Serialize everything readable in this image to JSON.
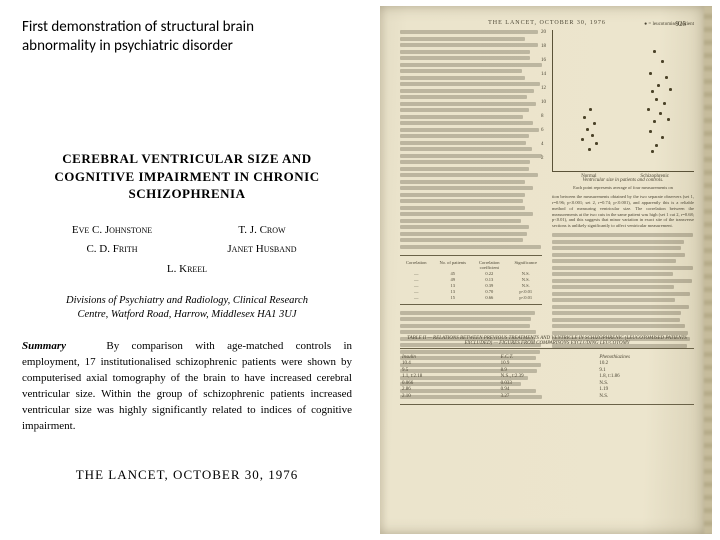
{
  "caption": "First demonstration of structural brain abnormality in psychiatric disorder",
  "paper": {
    "title_line1": "CEREBRAL VENTRICULAR SIZE AND",
    "title_line2": "COGNITIVE IMPAIRMENT IN CHRONIC",
    "title_line3": "SCHIZOPHRENIA",
    "authors": {
      "row1_left": "Eve C. Johnstone",
      "row1_right": "T. J. Crow",
      "row2_left": "C. D. Frith",
      "row2_right": "Janet Husband",
      "row3_center": "L. Kreel"
    },
    "affiliation_line1": "Divisions of Psychiatry and Radiology, Clinical Research",
    "affiliation_line2": "Centre, Watford Road, Harrow, Middlesex HA1 3UJ",
    "summary_label": "Summary",
    "summary_text": "By comparison with age-matched controls in employment, 17 institutionalised schizophrenic patients were shown by computerised axial tomography of the brain to have increased cerebral ventricular size. Within the group of schizophrenic patients increased ventricular size was highly significantly related to indices of cognitive impairment.",
    "journal_date": "THE LANCET, OCTOBER 30, 1976"
  },
  "scan": {
    "head": "THE LANCET, OCTOBER 30, 1976",
    "page_number": "925",
    "chart": {
      "corner_label": "● = leucotomised patient",
      "y_ticks": [
        "20",
        "18",
        "16",
        "14",
        "12",
        "10",
        "8",
        "6",
        "4",
        "2"
      ],
      "x_left": "Normal",
      "x_right": "Schizophrenic",
      "caption": "Ventricular size in patients and controls.",
      "subcaption": "Each point represents average of four measurements on",
      "normal_points": [
        {
          "x": 36,
          "y": 78
        },
        {
          "x": 30,
          "y": 86
        },
        {
          "x": 40,
          "y": 92
        },
        {
          "x": 33,
          "y": 98
        },
        {
          "x": 38,
          "y": 104
        },
        {
          "x": 28,
          "y": 108
        },
        {
          "x": 42,
          "y": 112
        },
        {
          "x": 35,
          "y": 118
        }
      ],
      "schizo_points": [
        {
          "x": 100,
          "y": 20
        },
        {
          "x": 108,
          "y": 30
        },
        {
          "x": 96,
          "y": 42
        },
        {
          "x": 112,
          "y": 46
        },
        {
          "x": 104,
          "y": 54
        },
        {
          "x": 98,
          "y": 60
        },
        {
          "x": 116,
          "y": 58
        },
        {
          "x": 102,
          "y": 68
        },
        {
          "x": 110,
          "y": 72
        },
        {
          "x": 94,
          "y": 78
        },
        {
          "x": 106,
          "y": 82
        },
        {
          "x": 100,
          "y": 90
        },
        {
          "x": 114,
          "y": 88
        },
        {
          "x": 96,
          "y": 100
        },
        {
          "x": 108,
          "y": 106
        },
        {
          "x": 102,
          "y": 114
        },
        {
          "x": 98,
          "y": 120
        }
      ]
    },
    "table1": {
      "cols": [
        "Correlation",
        "No. of patients",
        "Correlation coefficient",
        "Significance"
      ],
      "rows": [
        [
          "—",
          "45",
          "0.22",
          "N.S."
        ],
        [
          "—",
          "49",
          "0.13",
          "N.S."
        ],
        [
          "—",
          "13",
          "0.39",
          "N.S."
        ],
        [
          "—",
          "13",
          "0.70",
          "p<0.01"
        ],
        [
          "—",
          "15",
          "0.66",
          "p<0.01"
        ]
      ]
    },
    "right_text_tail_a": "tion between the measurements obtained by the two separate observers (set 1, r=0.96; p<0.001; set 2, r=0.74; p<0.001), and apparently this is a reliable method of measuring ventricular size. The correlation between the measurements at the two cuts in the same patient was high (set 1 cut 2, r=0.68; p<0.01), and this suggests that minor variation in exact site of the transverse sections is unlikely significantly to affect ventricular measurement.",
    "table2": {
      "title": "TABLE II — RELATIONS BETWEEN PREVIOUS TREATMENTS AND VENTRICLE IN SCHIZOPHRENIC (LEUCOTOMISED PATIENTS EXCLUDED) — FIGURES FROM COMPARISONS EXCLUDING LEUCOTOMY",
      "groups": [
        "Insulin",
        "E.C.T.",
        "Phenothiazines"
      ],
      "cells": [
        [
          "10.4",
          "9.5",
          "1.1, t:2.18",
          "0.066",
          "2.86",
          "2.10"
        ],
        [
          "10.9",
          "8.9",
          "N.S., t:2.39",
          "0.033",
          "0.94",
          "3.27"
        ],
        [
          "10.2",
          "9.1",
          "1.8, t:1.86",
          "N.S.",
          "1.19",
          "N.S."
        ]
      ]
    },
    "colors": {
      "page_bg": "#ece5cd",
      "ink": "#4a4433",
      "rule": "#6a6248"
    }
  }
}
